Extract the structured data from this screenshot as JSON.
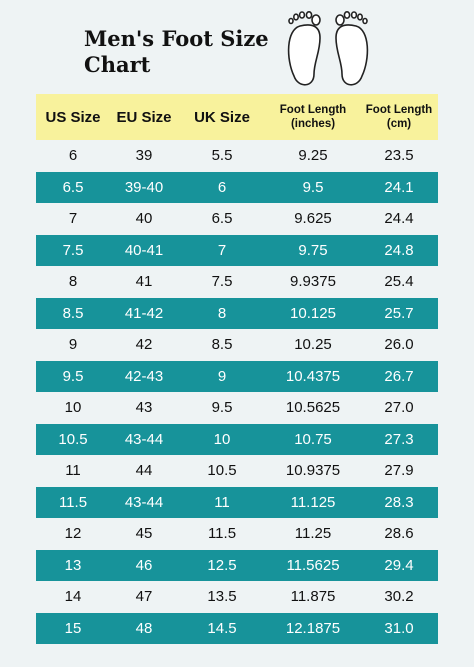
{
  "header": {
    "title": "Men's Foot Size Chart"
  },
  "table": {
    "columns": [
      "US Size",
      "EU Size",
      "UK Size",
      "Foot Length (inches)",
      "Foot Length (cm)"
    ],
    "rows": [
      [
        "6",
        "39",
        "5.5",
        "9.25",
        "23.5"
      ],
      [
        "6.5",
        "39-40",
        "6",
        "9.5",
        "24.1"
      ],
      [
        "7",
        "40",
        "6.5",
        "9.625",
        "24.4"
      ],
      [
        "7.5",
        "40-41",
        "7",
        "9.75",
        "24.8"
      ],
      [
        "8",
        "41",
        "7.5",
        "9.9375",
        "25.4"
      ],
      [
        "8.5",
        "41-42",
        "8",
        "10.125",
        "25.7"
      ],
      [
        "9",
        "42",
        "8.5",
        "10.25",
        "26.0"
      ],
      [
        "9.5",
        "42-43",
        "9",
        "10.4375",
        "26.7"
      ],
      [
        "10",
        "43",
        "9.5",
        "10.5625",
        "27.0"
      ],
      [
        "10.5",
        "43-44",
        "10",
        "10.75",
        "27.3"
      ],
      [
        "11",
        "44",
        "10.5",
        "10.9375",
        "27.9"
      ],
      [
        "11.5",
        "43-44",
        "11",
        "11.125",
        "28.3"
      ],
      [
        "12",
        "45",
        "11.5",
        "11.25",
        "28.6"
      ],
      [
        "13",
        "46",
        "12.5",
        "11.5625",
        "29.4"
      ],
      [
        "14",
        "47",
        "13.5",
        "11.875",
        "30.2"
      ],
      [
        "15",
        "48",
        "14.5",
        "12.1875",
        "31.0"
      ]
    ]
  }
}
